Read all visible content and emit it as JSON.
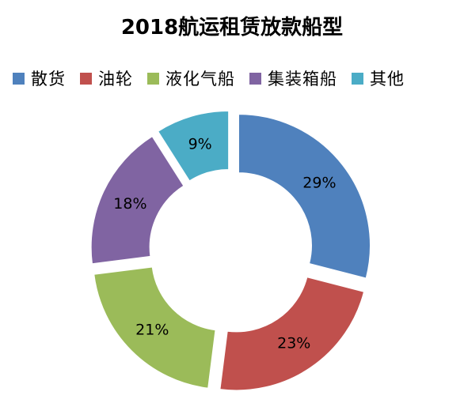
{
  "chart_data": {
    "type": "pie",
    "style": "exploded-donut",
    "title": "2018航运租赁放款船型",
    "legend_position": "top",
    "categories": [
      "散货",
      "油轮",
      "液化气船",
      "集装箱船",
      "其他"
    ],
    "values": [
      29,
      23,
      21,
      18,
      9
    ],
    "value_labels": [
      "29%",
      "23%",
      "21%",
      "18%",
      "9%"
    ],
    "colors": [
      "#4F81BD",
      "#C0504D",
      "#9BBB59",
      "#8064A2",
      "#4BACC6"
    ]
  }
}
